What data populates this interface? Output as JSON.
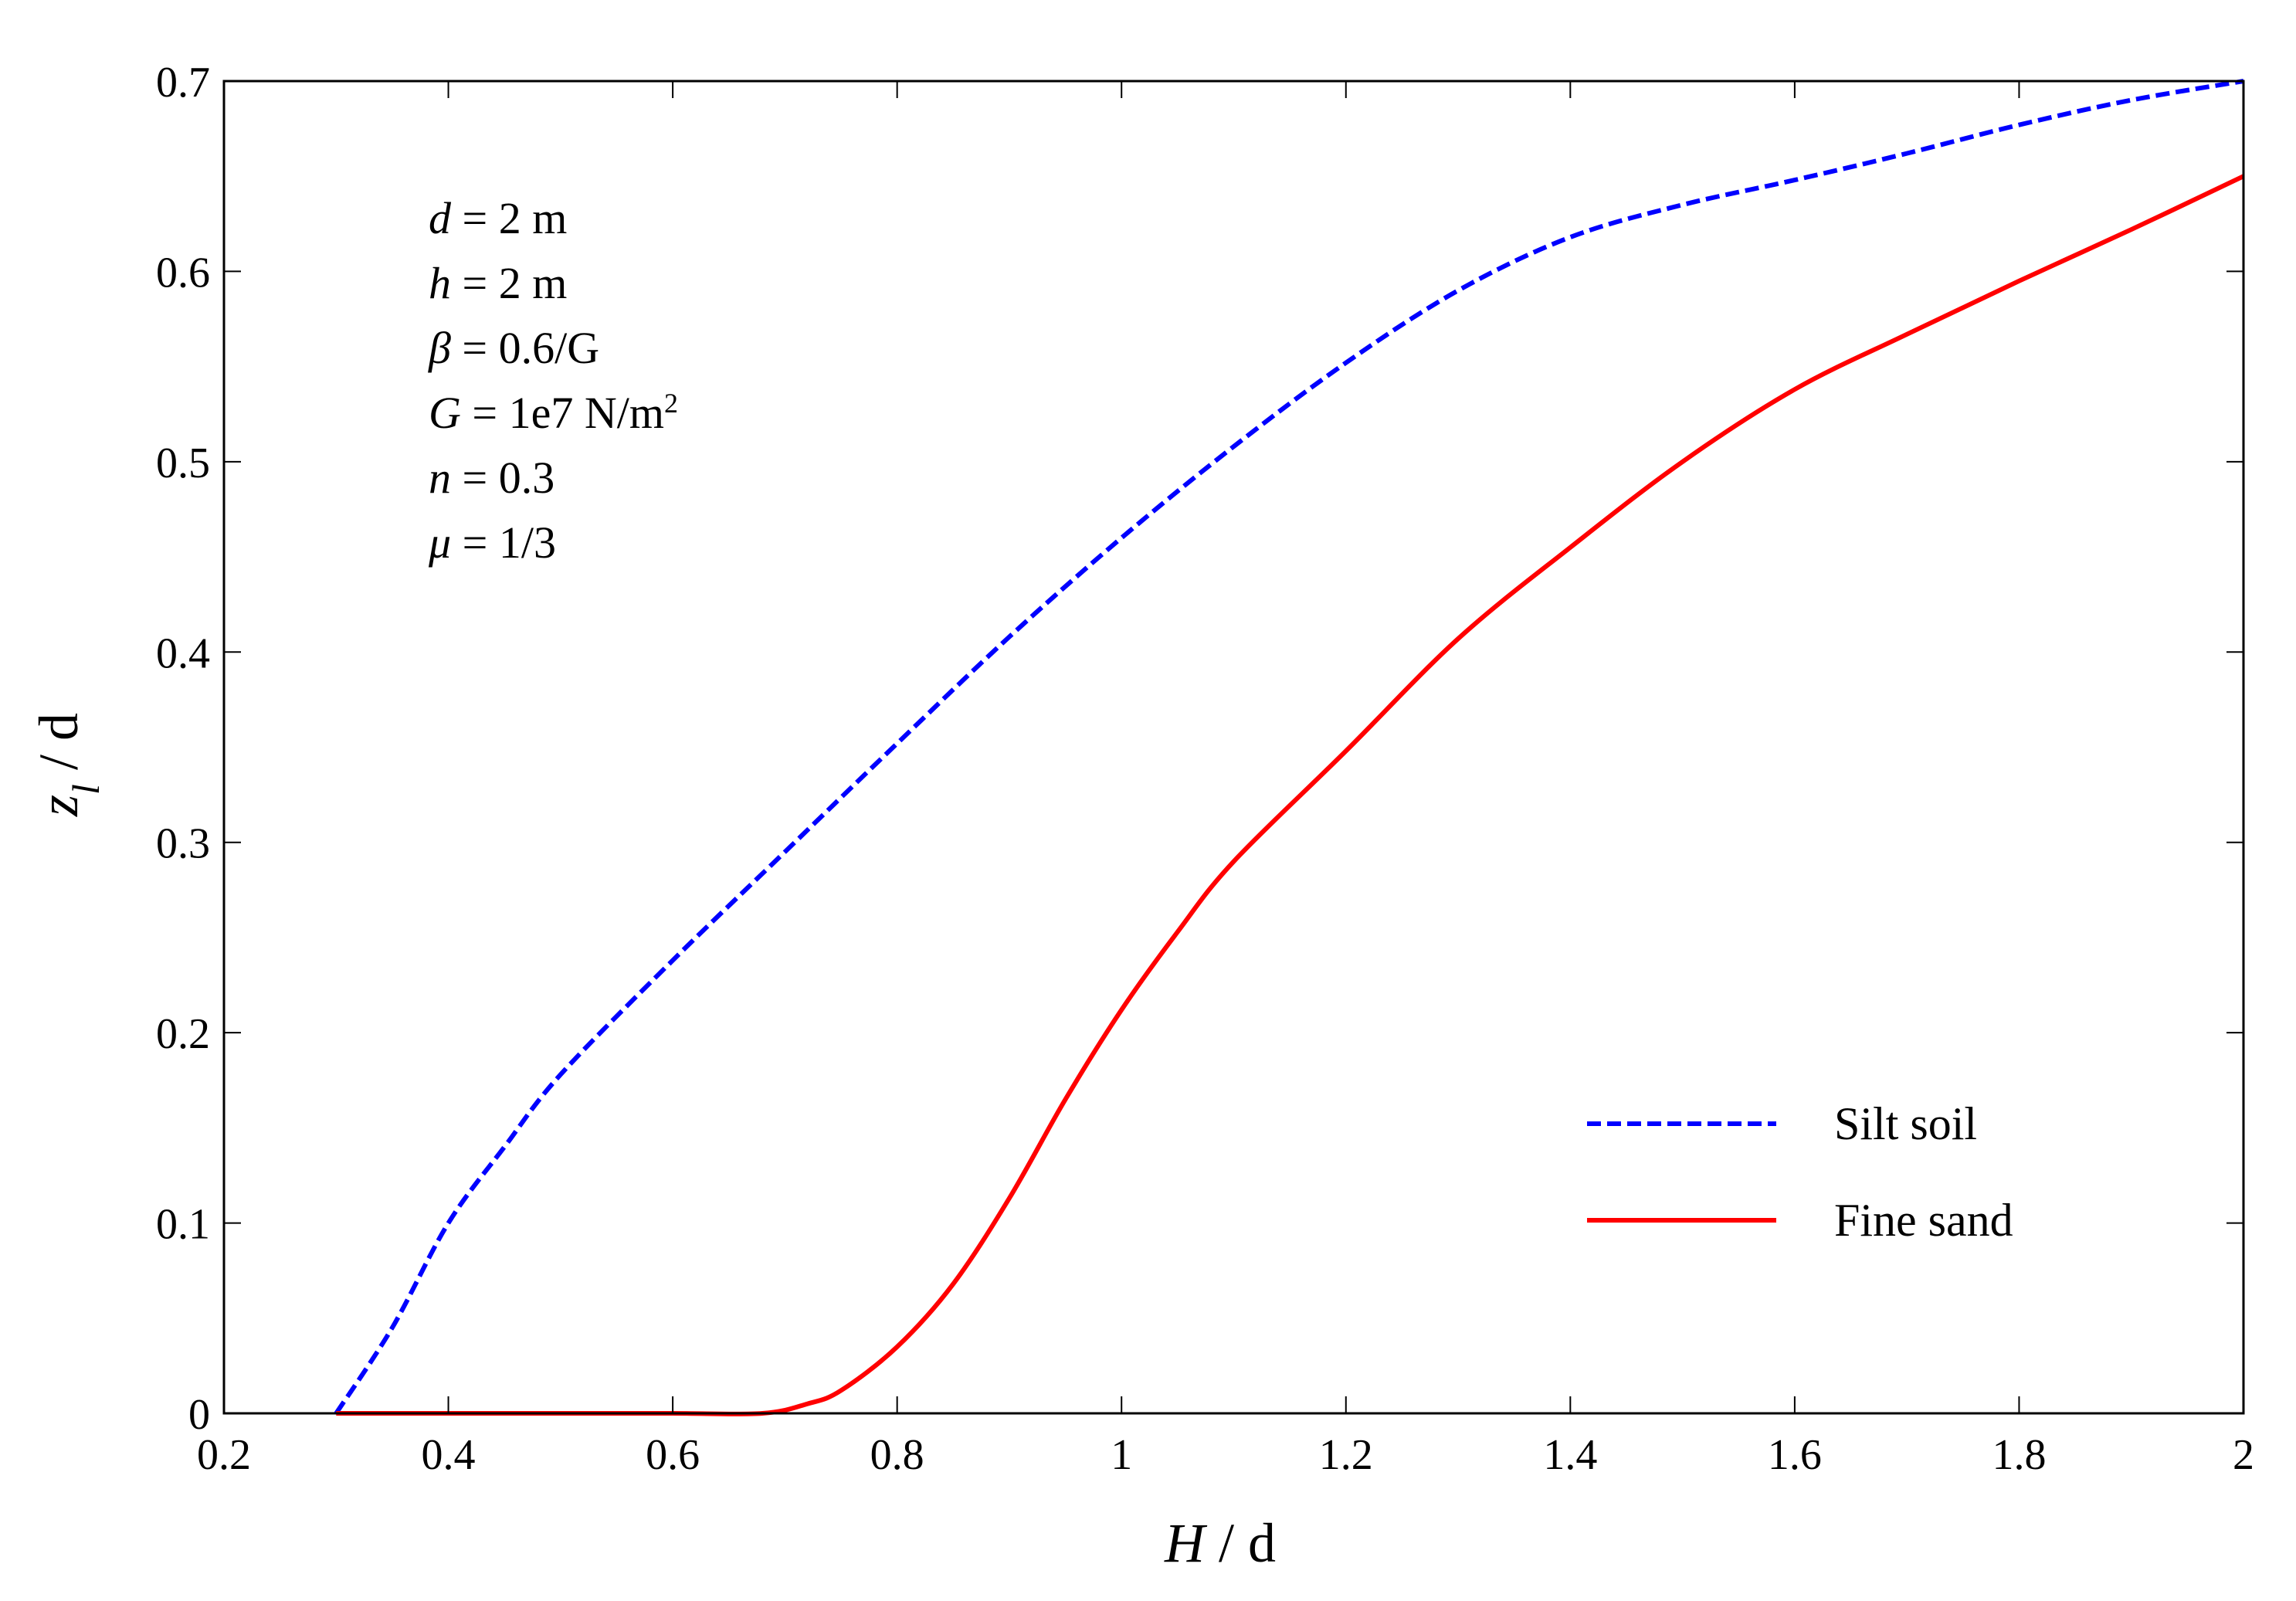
{
  "chart_data": {
    "type": "line",
    "title": "",
    "xlabel": {
      "var": "H",
      "rest": " / d"
    },
    "ylabel": {
      "var": "z",
      "sub": "l",
      "rest": " / d"
    },
    "xlim": [
      0.2,
      2.0
    ],
    "ylim": [
      0,
      0.7
    ],
    "xticks": [
      0.2,
      0.4,
      0.6,
      0.8,
      1.0,
      1.2,
      1.4,
      1.6,
      1.8,
      2.0
    ],
    "xtick_labels": [
      "0.2",
      "0.4",
      "0.6",
      "0.8",
      "1",
      "1.2",
      "1.4",
      "1.6",
      "1.8",
      "2"
    ],
    "yticks": [
      0,
      0.1,
      0.2,
      0.3,
      0.4,
      0.5,
      0.6,
      0.7
    ],
    "ytick_labels": [
      "0",
      "0.1",
      "0.2",
      "0.3",
      "0.4",
      "0.5",
      "0.6",
      "0.7"
    ],
    "grid": false,
    "legend_position": "bottom-right",
    "series": [
      {
        "name": "Silt soil",
        "color": "#0000ff",
        "style": "dashed",
        "x": [
          0.3,
          0.35,
          0.4,
          0.45,
          0.5,
          0.6,
          0.7,
          0.8,
          0.9,
          1.0,
          1.1,
          1.2,
          1.3,
          1.4,
          1.5,
          1.6,
          1.7,
          1.8,
          1.9,
          2.0
        ],
        "y": [
          0.0,
          0.045,
          0.1,
          0.14,
          0.178,
          0.238,
          0.295,
          0.352,
          0.408,
          0.46,
          0.508,
          0.552,
          0.59,
          0.618,
          0.635,
          0.648,
          0.662,
          0.677,
          0.69,
          0.7
        ]
      },
      {
        "name": "Fine sand",
        "color": "#ff0000",
        "style": "solid",
        "x": [
          0.3,
          0.4,
          0.5,
          0.6,
          0.68,
          0.72,
          0.75,
          0.8,
          0.85,
          0.9,
          0.95,
          1.0,
          1.05,
          1.1,
          1.2,
          1.3,
          1.4,
          1.5,
          1.6,
          1.7,
          1.8,
          1.9,
          2.0
        ],
        "y": [
          0.0,
          0.0,
          0.0,
          0.0,
          0.0,
          0.005,
          0.012,
          0.035,
          0.068,
          0.113,
          0.165,
          0.212,
          0.253,
          0.29,
          0.348,
          0.407,
          0.455,
          0.5,
          0.538,
          0.567,
          0.595,
          0.622,
          0.65
        ]
      }
    ],
    "annotations": [
      {
        "var": "d",
        "text": " = 2 m"
      },
      {
        "var": "h",
        "text": " = 2 m"
      },
      {
        "var": "β",
        "text": " = 0.6/G"
      },
      {
        "var": "G",
        "text": " = 1e7 N/m",
        "sup": "2"
      },
      {
        "var": "n",
        "text": " = 0.3"
      },
      {
        "var": "μ",
        "text": " = 1/3"
      }
    ]
  }
}
